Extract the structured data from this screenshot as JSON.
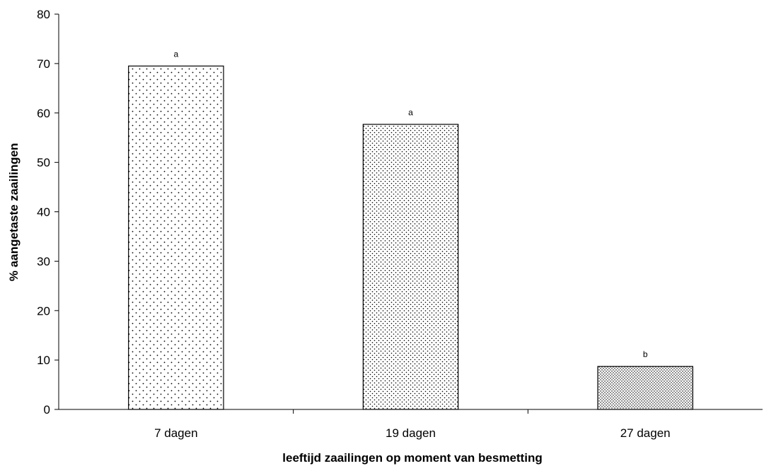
{
  "chart_data": {
    "type": "bar",
    "title": "",
    "xlabel": "leeftijd zaailingen op moment van besmetting",
    "ylabel": "% aangetaste zaailingen",
    "ylim": [
      0,
      80
    ],
    "yticks": [
      0,
      10,
      20,
      30,
      40,
      50,
      60,
      70,
      80
    ],
    "categories": [
      "7 dagen",
      "19 dagen",
      "27 dagen"
    ],
    "values": [
      69.5,
      57.7,
      8.7
    ],
    "annotations": [
      "a",
      "a",
      "b"
    ],
    "grid": false,
    "legend": "none"
  },
  "colors": {
    "bar_fill": "#ffffff",
    "bar_stroke": "#000000",
    "dot": "#000000",
    "axis": "#000000"
  }
}
